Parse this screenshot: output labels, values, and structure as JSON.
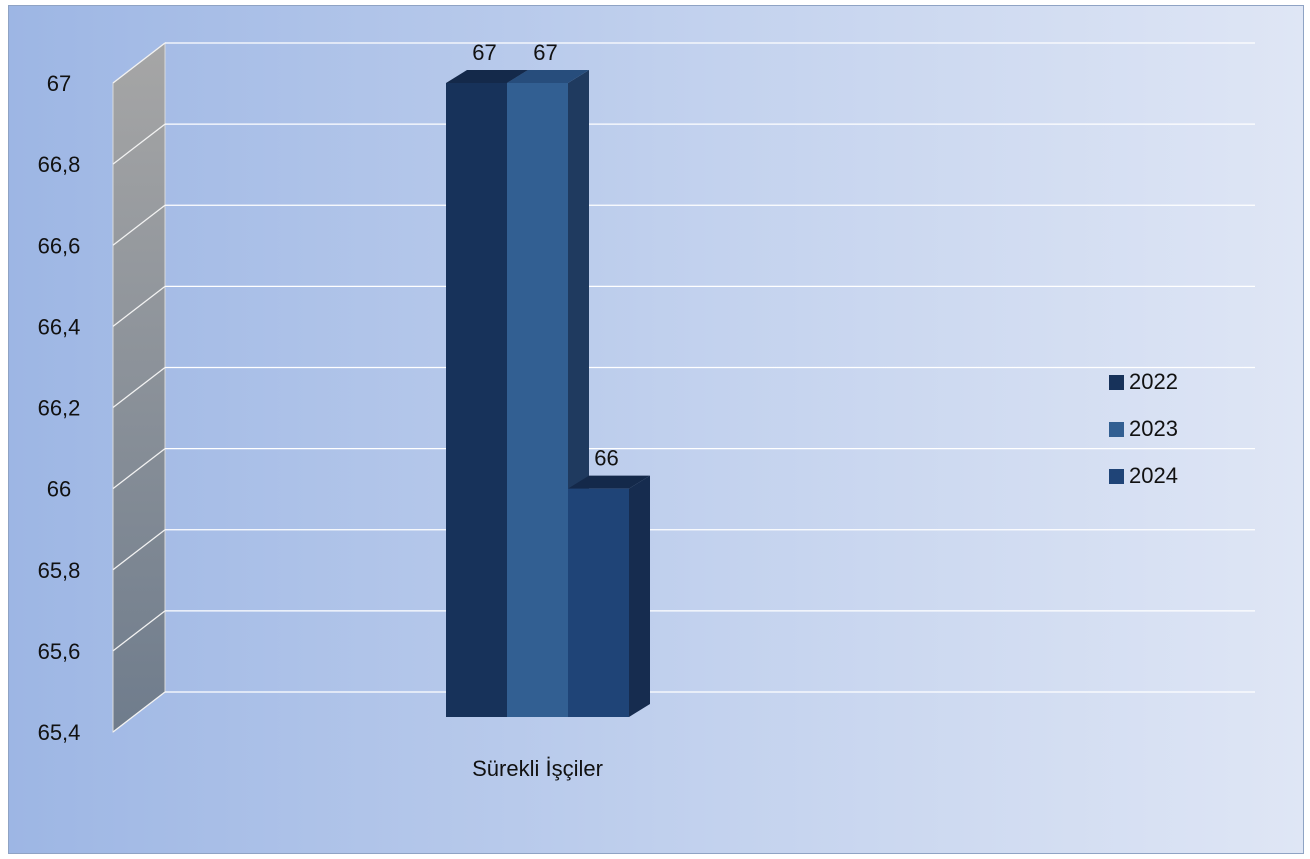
{
  "chart_data": {
    "type": "bar",
    "categories": [
      "Sürekli İşçiler"
    ],
    "series": [
      {
        "name": "2022",
        "values": [
          67
        ]
      },
      {
        "name": "2023",
        "values": [
          67
        ]
      },
      {
        "name": "2024",
        "values": [
          66
        ]
      }
    ],
    "title": "",
    "xlabel": "",
    "ylabel": "",
    "ylim": [
      65.4,
      67
    ],
    "yticks": [
      "65,4",
      "65,6",
      "65,8",
      "66",
      "66,2",
      "66,4",
      "66,6",
      "66,8",
      "67"
    ],
    "data_labels": [
      "67",
      "67",
      "66"
    ],
    "legend_position": "right",
    "grid": true,
    "style": "3d-clustered-column"
  },
  "colors": {
    "series": [
      "#17325a",
      "#325f92",
      "#1f4477"
    ],
    "background_left": "#9db6e4",
    "background_right": "#dfe6f5",
    "gridline": "#ffffff"
  }
}
